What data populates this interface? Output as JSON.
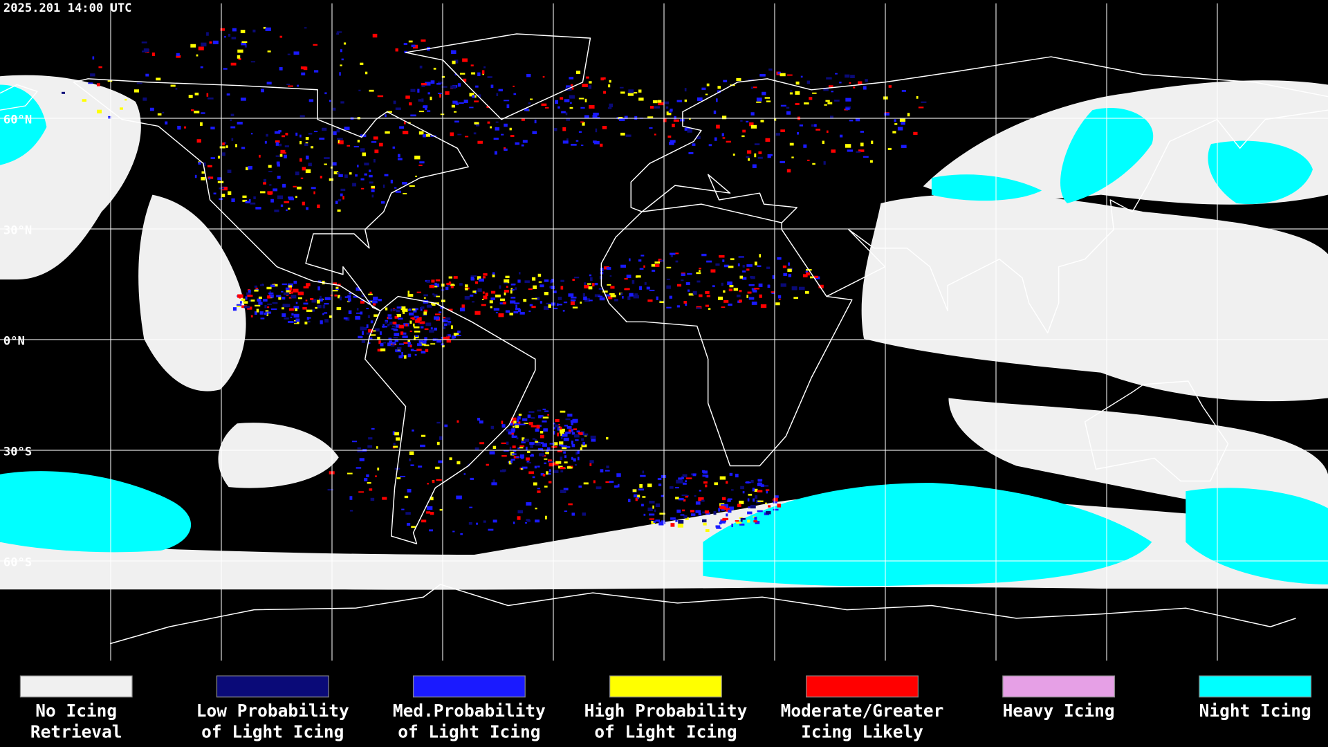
{
  "map": {
    "timestamp": "2025.201 14:00 UTC",
    "latitude_labels": [
      "60°N",
      "30°N",
      "0°N",
      "30°S",
      "60°S"
    ]
  },
  "legend": {
    "items": [
      {
        "lines": [
          "No Icing",
          "Retrieval"
        ],
        "color": "#f0f0f0"
      },
      {
        "lines": [
          "Low Probability",
          "of Light Icing"
        ],
        "color": "#0a0a78"
      },
      {
        "lines": [
          "Med.Probability",
          "of Light Icing"
        ],
        "color": "#1a1aff"
      },
      {
        "lines": [
          "High Probability",
          "of Light Icing"
        ],
        "color": "#ffff00"
      },
      {
        "lines": [
          "Moderate/Greater",
          "Icing Likely"
        ],
        "color": "#ff0000"
      },
      {
        "lines": [
          "Heavy Icing"
        ],
        "color": "#e6a0e6"
      },
      {
        "lines": [
          "Night Icing"
        ],
        "color": "#00ffff"
      }
    ]
  }
}
